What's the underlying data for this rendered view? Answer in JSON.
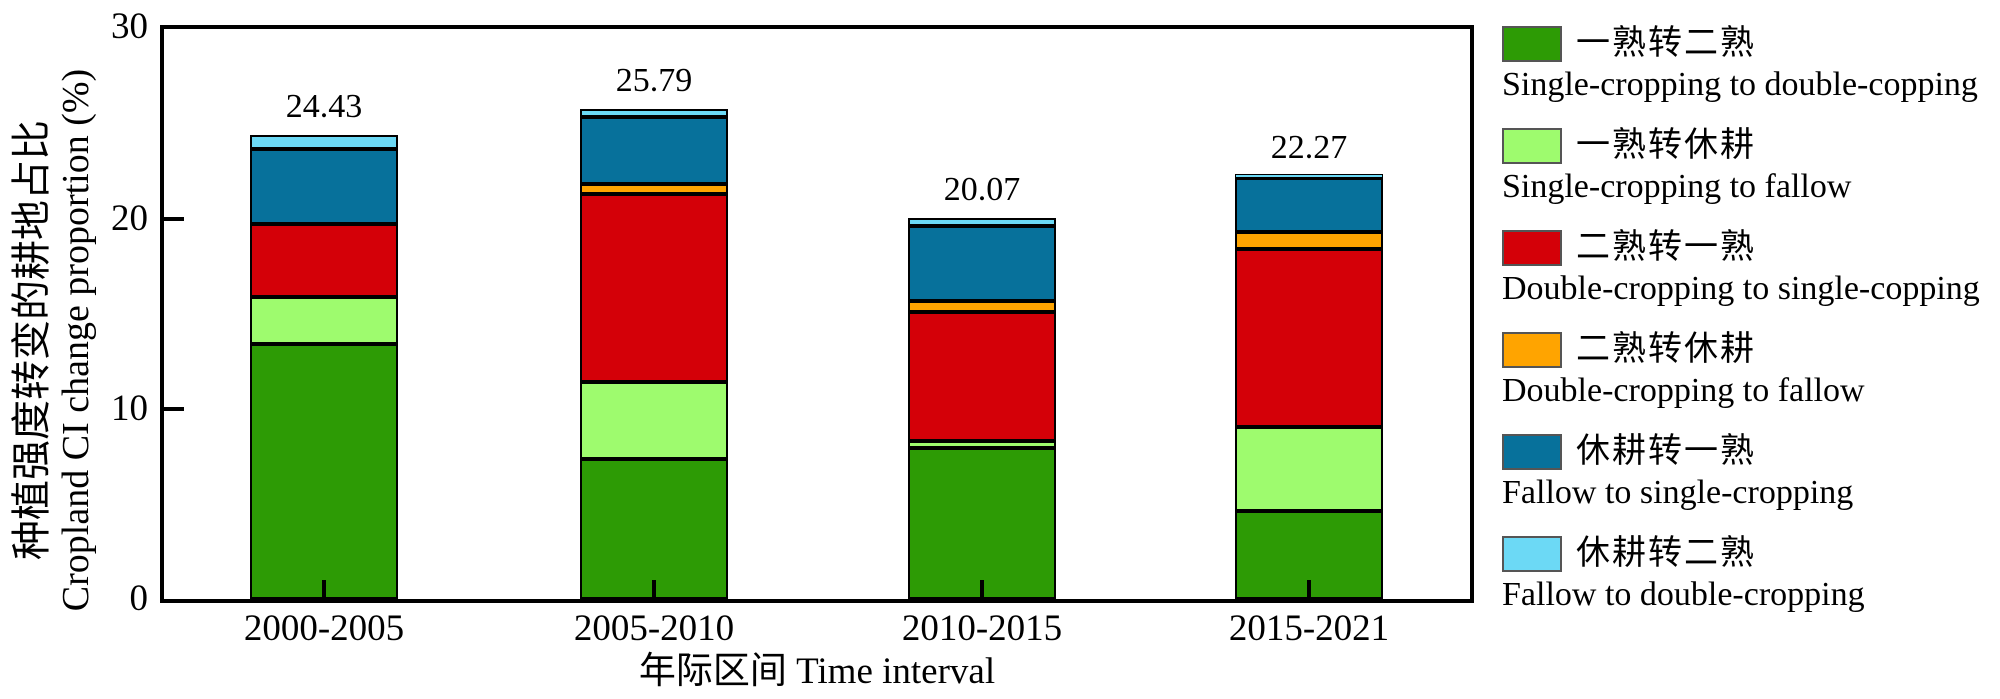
{
  "figure": {
    "y_axis_title_cn": "种植强度转变的耕地占比",
    "y_axis_title_en": "Cropland CI change proportion (%)",
    "x_axis_title": "年际区间 Time interval"
  },
  "chart_data": {
    "type": "bar",
    "stacked": true,
    "categories": [
      "2000-2005",
      "2005-2010",
      "2010-2015",
      "2015-2021"
    ],
    "series": [
      {
        "name_cn": "一熟转二熟",
        "name_en": "Single-cropping to double-copping",
        "color": "#2D9B05",
        "values": [
          13.4,
          7.35,
          7.93,
          4.62
        ]
      },
      {
        "name_cn": "一熟转休耕",
        "name_en": "Single-cropping to fallow",
        "color": "#9EFB6E",
        "values": [
          2.5,
          4.05,
          0.38,
          4.43
        ]
      },
      {
        "name_cn": "二熟转一熟",
        "name_en": "Double-cropping to single-copping",
        "color": "#D40008",
        "values": [
          3.86,
          9.92,
          6.82,
          9.39
        ]
      },
      {
        "name_cn": "二熟转休耕",
        "name_en": "Double-cropping to fallow",
        "color": "#FFA400",
        "values": [
          0.0,
          0.53,
          0.53,
          0.89
        ]
      },
      {
        "name_cn": "休耕转一熟",
        "name_en": "Fallow to single-cropping",
        "color": "#07719B",
        "values": [
          3.92,
          3.5,
          3.97,
          2.82
        ]
      },
      {
        "name_cn": "休耕转二熟",
        "name_en": "Fallow to double-cropping",
        "color": "#6CD9F5",
        "values": [
          0.75,
          0.44,
          0.44,
          0.12
        ]
      }
    ],
    "totals": [
      "24.43",
      "25.79",
      "20.07",
      "22.27"
    ],
    "yticks": [
      "30",
      "20",
      "10",
      "0"
    ],
    "ylim": [
      0,
      30
    ],
    "ylabel": "种植强度转变的耕地占比 Cropland CI change proportion (%)",
    "xlabel": "年际区间 Time interval",
    "grid": false,
    "legend_position": "right-outside",
    "bar_outline_color": "#000000",
    "background_color": "#FFFFFF"
  }
}
